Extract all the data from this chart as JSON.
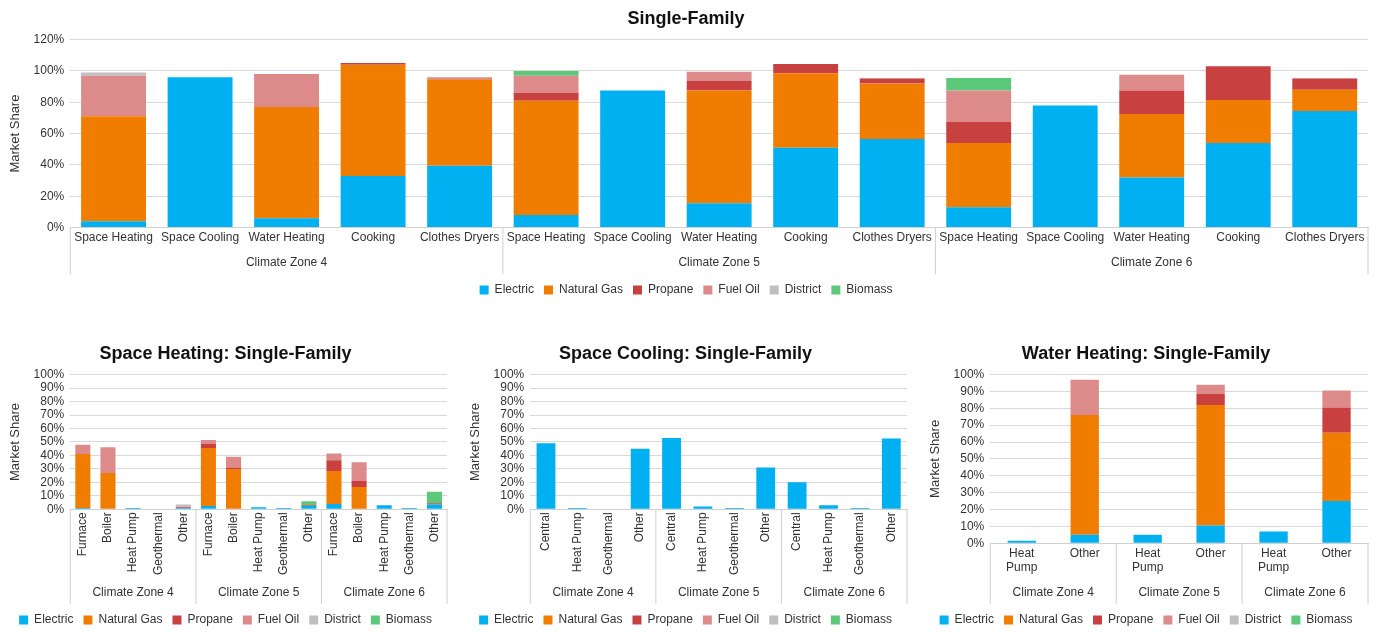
{
  "chart_data": [
    {
      "type": "bar",
      "title": "Single-Family",
      "ylabel": "Market Share",
      "stacked": true,
      "grid": "y",
      "legend": "bottom",
      "categories": [
        "Space Heating",
        "Space Cooling",
        "Water Heating",
        "Cooking",
        "Clothes Dryers",
        "Space Heating",
        "Space Cooling",
        "Water Heating",
        "Cooking",
        "Clothes Dryers",
        "Space Heating",
        "Space Cooling",
        "Water Heating",
        "Cooking",
        "Clothes Dryers"
      ],
      "annotations": [
        "Climate Zone 4",
        "Climate Zone 5",
        "Climate Zone 6"
      ],
      "ylim": [
        0,
        120
      ],
      "yticks": [
        {
          "value": 0,
          "label": "0%"
        },
        {
          "value": 20,
          "label": "20%"
        },
        {
          "value": 40,
          "label": "40%"
        },
        {
          "value": 60,
          "label": "60%"
        },
        {
          "value": 80,
          "label": "80%"
        },
        {
          "value": 100,
          "label": "100%"
        },
        {
          "value": 120,
          "label": "120%"
        }
      ],
      "series": [
        {
          "name": "Electric",
          "color": "#00b0f0",
          "values": [
            4,
            96,
            6,
            33,
            39.5,
            8,
            87.5,
            15.5,
            51,
            56.5,
            13,
            78,
            32,
            54,
            74.5
          ]
        },
        {
          "name": "Natural Gas",
          "color": "#f07c00",
          "values": [
            67,
            0,
            71,
            71,
            55,
            73,
            0,
            72,
            47.5,
            35.5,
            41,
            0,
            40.5,
            27.5,
            13.5
          ]
        },
        {
          "name": "Propane",
          "color": "#c94040",
          "values": [
            0,
            0,
            0,
            1,
            0.5,
            5,
            0,
            6,
            6,
            3,
            13.5,
            0,
            15,
            21.5,
            7
          ]
        },
        {
          "name": "Fuel Oil",
          "color": "#dc8a8a",
          "values": [
            26,
            0,
            21,
            0,
            1,
            11,
            0,
            6,
            0,
            0.5,
            20,
            0,
            10,
            0,
            0.5
          ]
        },
        {
          "name": "District",
          "color": "#bfbfbf",
          "values": [
            2,
            0,
            0,
            0,
            0,
            0,
            0,
            0,
            0,
            0,
            0,
            0,
            0,
            0,
            0
          ]
        },
        {
          "name": "Biomass",
          "color": "#5cc87a",
          "values": [
            0,
            0,
            0,
            0,
            0,
            3,
            0,
            0,
            0,
            0,
            8,
            0,
            0,
            0,
            0
          ]
        }
      ]
    },
    {
      "type": "bar",
      "title": "Space Heating: Single-Family",
      "ylabel": "Market Share",
      "stacked": true,
      "grid": "y",
      "legend": "bottom",
      "categories": [
        "Furnace",
        "Boiler",
        "Heat Pump",
        "Geothermal",
        "Other",
        "Furnace",
        "Boiler",
        "Heat Pump",
        "Geothermal",
        "Other",
        "Furnace",
        "Boiler",
        "Heat Pump",
        "Geothermal",
        "Other"
      ],
      "annotations": [
        "Climate Zone 4",
        "Climate Zone 5",
        "Climate Zone 6"
      ],
      "ylim": [
        0,
        100
      ],
      "yticks": [
        {
          "value": 0,
          "label": "0%"
        },
        {
          "value": 10,
          "label": "10%"
        },
        {
          "value": 20,
          "label": "20%"
        },
        {
          "value": 30,
          "label": "30%"
        },
        {
          "value": 40,
          "label": "40%"
        },
        {
          "value": 50,
          "label": "50%"
        },
        {
          "value": 60,
          "label": "60%"
        },
        {
          "value": 70,
          "label": "70%"
        },
        {
          "value": 80,
          "label": "80%"
        },
        {
          "value": 90,
          "label": "90%"
        },
        {
          "value": 100,
          "label": "100%"
        }
      ],
      "series": [
        {
          "name": "Electric",
          "color": "#00b0f0",
          "values": [
            1,
            0,
            1,
            0,
            1,
            2.5,
            0,
            1.5,
            1,
            2.5,
            4,
            0,
            3,
            1,
            3.5
          ]
        },
        {
          "name": "Natural Gas",
          "color": "#f07c00",
          "values": [
            40,
            27,
            0,
            0,
            0,
            43,
            30,
            0,
            0,
            0,
            24.5,
            16.5,
            0,
            0,
            0
          ]
        },
        {
          "name": "Propane",
          "color": "#c94040",
          "values": [
            0,
            0,
            0,
            0,
            0.5,
            3,
            1,
            0,
            0,
            0.5,
            8,
            4.5,
            0,
            0,
            1
          ]
        },
        {
          "name": "Fuel Oil",
          "color": "#dc8a8a",
          "values": [
            7,
            19,
            0,
            0,
            0,
            3,
            8,
            0,
            0,
            0,
            5,
            14,
            0,
            0,
            0
          ]
        },
        {
          "name": "District",
          "color": "#bfbfbf",
          "values": [
            0,
            0,
            0,
            0,
            2,
            0,
            0,
            0,
            0,
            0,
            0,
            0,
            0,
            0,
            0
          ]
        },
        {
          "name": "Biomass",
          "color": "#5cc87a",
          "values": [
            0,
            0,
            0,
            0,
            0,
            0,
            0,
            0,
            0,
            3,
            0,
            0,
            0,
            0,
            8.5
          ]
        }
      ]
    },
    {
      "type": "bar",
      "title": "Space Cooling: Single-Family",
      "ylabel": "Market Share",
      "stacked": true,
      "grid": "y",
      "legend": "bottom",
      "categories": [
        "Central",
        "Heat Pump",
        "Geothermal",
        "Other",
        "Central",
        "Heat Pump",
        "Geothermal",
        "Other",
        "Central",
        "Heat Pump",
        "Geothermal",
        "Other"
      ],
      "annotations": [
        "Climate Zone 4",
        "Climate Zone 5",
        "Climate Zone 6"
      ],
      "ylim": [
        0,
        100
      ],
      "yticks": [
        {
          "value": 0,
          "label": "0%"
        },
        {
          "value": 10,
          "label": "10%"
        },
        {
          "value": 20,
          "label": "20%"
        },
        {
          "value": 30,
          "label": "30%"
        },
        {
          "value": 40,
          "label": "40%"
        },
        {
          "value": 50,
          "label": "50%"
        },
        {
          "value": 60,
          "label": "60%"
        },
        {
          "value": 70,
          "label": "70%"
        },
        {
          "value": 80,
          "label": "80%"
        },
        {
          "value": 90,
          "label": "90%"
        },
        {
          "value": 100,
          "label": "100%"
        }
      ],
      "series": [
        {
          "name": "Electric",
          "color": "#00b0f0",
          "values": [
            49,
            1,
            0,
            45,
            53,
            2,
            1,
            31,
            20,
            3,
            1,
            52.5
          ]
        },
        {
          "name": "Natural Gas",
          "color": "#f07c00",
          "values": [
            0,
            0,
            0,
            0,
            0,
            0,
            0,
            0,
            0,
            0,
            0,
            0
          ]
        },
        {
          "name": "Propane",
          "color": "#c94040",
          "values": [
            0,
            0,
            0,
            0,
            0,
            0,
            0,
            0,
            0,
            0,
            0,
            0
          ]
        },
        {
          "name": "Fuel Oil",
          "color": "#dc8a8a",
          "values": [
            0,
            0,
            0,
            0,
            0,
            0,
            0,
            0,
            0,
            0,
            0,
            0
          ]
        },
        {
          "name": "District",
          "color": "#bfbfbf",
          "values": [
            0,
            0,
            0,
            0,
            0,
            0,
            0,
            0,
            0,
            0,
            0,
            0
          ]
        },
        {
          "name": "Biomass",
          "color": "#5cc87a",
          "values": [
            0,
            0,
            0,
            0,
            0,
            0,
            0,
            0,
            0,
            0,
            0,
            0
          ]
        }
      ]
    },
    {
      "type": "bar",
      "title": "Water Heating: Single-Family",
      "ylabel": "Market Share",
      "stacked": true,
      "grid": "y",
      "legend": "bottom",
      "categories": [
        "Heat Pump",
        "Other",
        "Heat Pump",
        "Other",
        "Heat Pump",
        "Other"
      ],
      "annotations": [
        "Climate Zone 4",
        "Climate Zone 5",
        "Climate Zone 6"
      ],
      "ylim": [
        0,
        100
      ],
      "yticks": [
        {
          "value": 0,
          "label": "0%"
        },
        {
          "value": 10,
          "label": "10%"
        },
        {
          "value": 20,
          "label": "20%"
        },
        {
          "value": 30,
          "label": "30%"
        },
        {
          "value": 40,
          "label": "40%"
        },
        {
          "value": 50,
          "label": "50%"
        },
        {
          "value": 60,
          "label": "60%"
        },
        {
          "value": 70,
          "label": "70%"
        },
        {
          "value": 80,
          "label": "80%"
        },
        {
          "value": 90,
          "label": "90%"
        },
        {
          "value": 100,
          "label": "100%"
        }
      ],
      "series": [
        {
          "name": "Electric",
          "color": "#00b0f0",
          "values": [
            1.5,
            5,
            5,
            10.5,
            7,
            25
          ]
        },
        {
          "name": "Natural Gas",
          "color": "#f07c00",
          "values": [
            0,
            71,
            0,
            71.5,
            0,
            40.5
          ]
        },
        {
          "name": "Propane",
          "color": "#c94040",
          "values": [
            0,
            0,
            0,
            6.5,
            0,
            15
          ]
        },
        {
          "name": "Fuel Oil",
          "color": "#dc8a8a",
          "values": [
            0,
            21,
            0,
            5.5,
            0,
            10
          ]
        },
        {
          "name": "District",
          "color": "#bfbfbf",
          "values": [
            0,
            0,
            0,
            0,
            0,
            0
          ]
        },
        {
          "name": "Biomass",
          "color": "#5cc87a",
          "values": [
            0,
            0,
            0,
            0,
            0,
            0
          ]
        }
      ]
    }
  ]
}
